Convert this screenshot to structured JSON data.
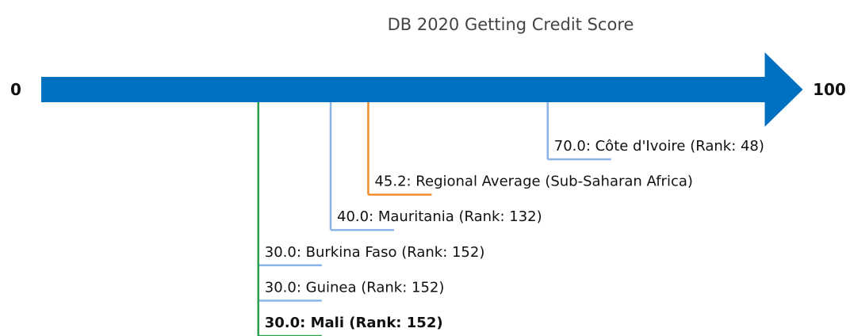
{
  "chart_data": {
    "type": "number_line",
    "title": "DB 2020 Getting Credit Score",
    "xlim": [
      0,
      100
    ],
    "xticks": [
      0,
      100
    ],
    "color": "#0070c0",
    "markers": [
      {
        "label": "70.0: Côte d'Ivoire (Rank: 48)",
        "value": 70,
        "color": "#8ab4e8"
      },
      {
        "label": "45.2: Regional Average (Sub-Saharan Africa)",
        "value": 45.2,
        "color": "#f28e2b"
      },
      {
        "label": "40.0: Mauritania (Rank: 132)",
        "value": 40,
        "color": "#8ab4e8"
      },
      {
        "label": "30.0: Burkina Faso (Rank: 152)",
        "value": 30,
        "color": "#8ab4e8"
      },
      {
        "label": "30.0: Guinea (Rank: 152)",
        "value": 30,
        "color": "#8ab4e8"
      },
      {
        "label": "30.0: Mali (Rank: 152)",
        "value": 30,
        "color": "#2ca04c",
        "bold": true
      }
    ]
  }
}
